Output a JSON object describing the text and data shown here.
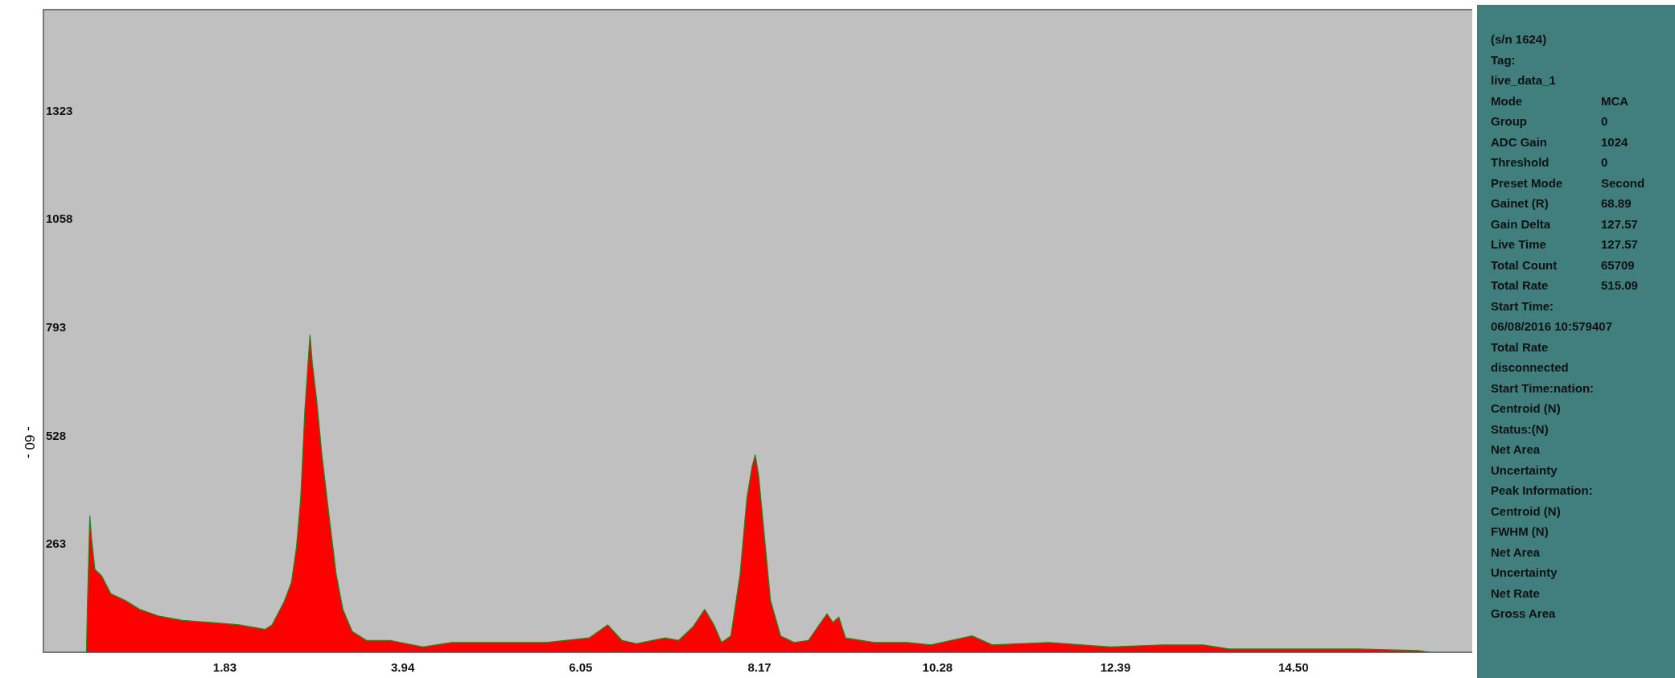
{
  "chart_data": {
    "type": "area",
    "color": "#ff0000",
    "x": [
      0.19,
      0.2,
      0.23,
      0.25,
      0.29,
      0.37,
      0.48,
      0.65,
      0.82,
      1.04,
      1.33,
      1.66,
      2.0,
      2.31,
      2.39,
      2.53,
      2.62,
      2.68,
      2.73,
      2.78,
      2.83,
      2.84,
      2.87,
      2.92,
      2.98,
      3.06,
      3.15,
      3.23,
      3.34,
      3.51,
      3.79,
      4.18,
      4.52,
      5.08,
      5.64,
      6.15,
      6.37,
      6.54,
      6.71,
      7.05,
      7.21,
      7.38,
      7.52,
      7.63,
      7.72,
      7.83,
      7.94,
      8.02,
      8.08,
      8.12,
      8.16,
      8.22,
      8.3,
      8.42,
      8.58,
      8.75,
      8.86,
      8.97,
      9.04,
      9.11,
      9.19,
      9.53,
      9.92,
      10.2,
      10.69,
      10.93,
      11.6,
      12.33,
      12.95,
      13.43,
      13.74,
      14.52,
      15.25,
      15.98,
      16.12
    ],
    "values": [
      0,
      105,
      334,
      279,
      203,
      187,
      143,
      127,
      105,
      89,
      78,
      73,
      67,
      56,
      67,
      122,
      171,
      257,
      377,
      594,
      747,
      776,
      703,
      616,
      486,
      345,
      192,
      105,
      51,
      29,
      29,
      13,
      24,
      24,
      24,
      35,
      67,
      29,
      21,
      35,
      29,
      62,
      105,
      67,
      24,
      40,
      192,
      377,
      453,
      483,
      431,
      301,
      127,
      40,
      24,
      29,
      62,
      94,
      73,
      86,
      35,
      24,
      24,
      18,
      40,
      18,
      24,
      13,
      18,
      18,
      8,
      8,
      8,
      4,
      0
    ],
    "xlim": [
      -0.32,
      16.62
    ],
    "ylim": [
      0,
      1572
    ],
    "xticks": [
      1.83,
      3.94,
      6.05,
      8.17,
      10.28,
      12.39,
      {
        "value": 14.5,
        "label": "14.50"
      }
    ],
    "yticks": [
      263,
      528,
      793,
      1058,
      1323
    ],
    "annotations": [
      "- 60 -",
      "(s/n 1624)",
      "Tag:",
      "live_data_1",
      "Mode\tMCA",
      "Group\t0",
      "ADC Gain\t1024",
      "Threshold\t0",
      "Preset Mode\tSecond",
      "Gainet (R)\t68.89",
      "Gain Delta\t127.57",
      "Live Time\t127.57",
      "Total Count\t65709",
      "Total Rate\t515.09",
      "Start Time:",
      "06/08/2016 10:579407",
      "Total Rate",
      "disconnected",
      "Start Time:nation:",
      "Centroid (N)",
      "Status:(N)",
      "Net Area",
      "Uncertainty",
      "Peak Information:",
      "Centroid (N)",
      "FWHM (N)",
      "Net Area",
      "Uncertainty",
      "Net Rate",
      "Gross Area"
    ]
  }
}
